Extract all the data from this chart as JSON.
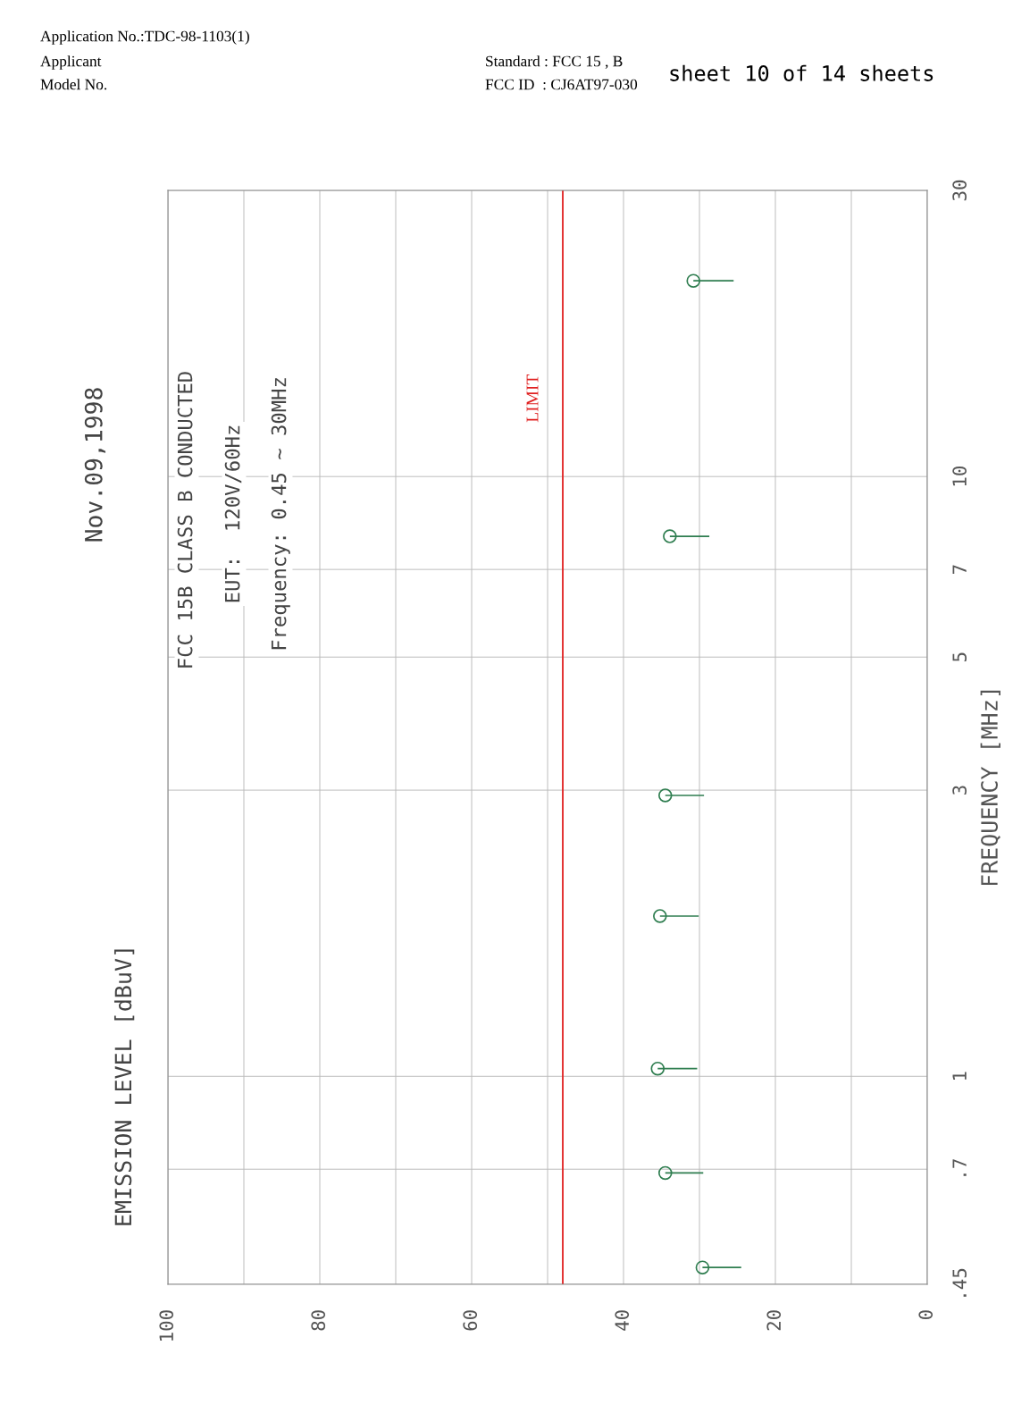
{
  "chart_data": {
    "type": "scatter",
    "orientation": "horizontal",
    "ylabel": "FREQUENCY [MHz]",
    "x": [
      21.2,
      7.95,
      2.94,
      1.85,
      1.03,
      0.69,
      0.48
    ],
    "series": [
      {
        "color": "#2e7d4f",
        "values": [
          30.8,
          33.9,
          34.5,
          35.2,
          35.5,
          34.5,
          29.6
        ],
        "errors": [
          [
            25.5,
            30.8
          ],
          [
            28.7,
            33.9
          ],
          [
            29.4,
            34.5
          ],
          [
            30.1,
            35.2
          ],
          [
            30.3,
            35.5
          ],
          [
            29.5,
            34.5
          ],
          [
            24.5,
            29.6
          ]
        ]
      }
    ],
    "marker": "circle",
    "log": "y",
    "grid": true,
    "xlim": [
      100,
      0
    ],
    "xticks": [
      100,
      {
        "value": 90,
        "label": null
      },
      80,
      {
        "value": 70,
        "label": null
      },
      60,
      {
        "value": 50,
        "label": null
      },
      40,
      {
        "value": 30,
        "label": null
      },
      20,
      {
        "value": 10,
        "label": null
      },
      0
    ],
    "ylim": [
      0.45,
      30
    ],
    "yticks": [
      {
        "value": 0.45,
        "label": ".45"
      },
      {
        "value": 0.7,
        "label": ".7"
      },
      1,
      3,
      5,
      7,
      10,
      30
    ],
    "ref_lines": [
      {
        "axis": "x",
        "value": 48,
        "label": "LIMIT",
        "color": "#e02020"
      }
    ],
    "annotations": [
      "Application No.:TDC-98-1103(1)",
      "Applicant",
      "Model No.",
      "Standard : FCC 15 , B",
      "FCC ID  : CJ6AT97-030",
      "sheet 10 of 14 sheets",
      "Nov.09,1998",
      "FCC 15B CLASS B CONDUCTED",
      "EUT:  120V/60Hz",
      "Frequency: 0.45 ~ 30MHz",
      "EMISSION LEVEL [dBuV]"
    ]
  }
}
